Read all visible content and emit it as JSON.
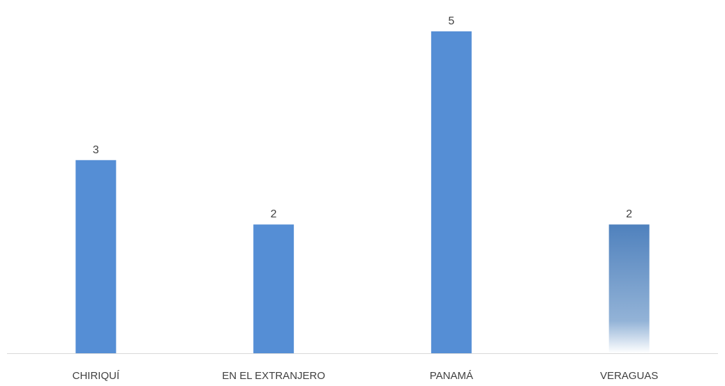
{
  "chart_data": {
    "type": "bar",
    "title": "",
    "xlabel": "",
    "ylabel": "",
    "categories": [
      "CHIRIQUÍ",
      "EN EL EXTRANJERO",
      "PANAMÁ",
      "VERAGUAS"
    ],
    "values": [
      3,
      2,
      5,
      2
    ],
    "data_labels": [
      "3",
      "2",
      "5",
      "2"
    ],
    "ylim": [
      0,
      5
    ],
    "grid": false,
    "legend": "none",
    "colors": {
      "bar": "#558ED5",
      "bar_gradient_top": "#4F81BD",
      "bar_gradient_mid": "#93B3D7",
      "axis": "#D9D9D9",
      "text": "#404040"
    }
  }
}
